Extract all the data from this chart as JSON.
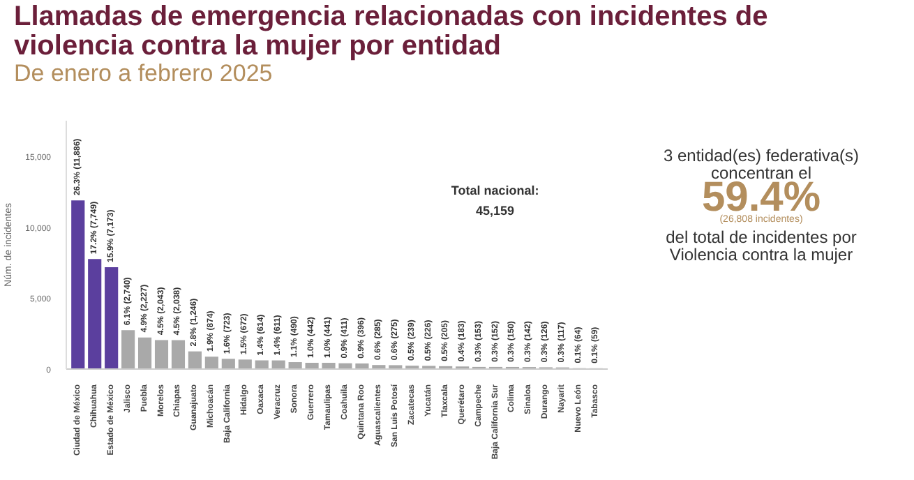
{
  "chart_data": {
    "type": "bar",
    "title": "Llamadas de emergencia relacionadas con incidentes de violencia contra la mujer por entidad",
    "subtitle": "De enero a febrero 2025",
    "ylabel": "Núm. de incidentes",
    "categories": [
      "Ciudad de México",
      "Chihuahua",
      "Estado de México",
      "Jalisco",
      "Puebla",
      "Morelos",
      "Chiapas",
      "Guanajuato",
      "Michoacán",
      "Baja California",
      "Hidalgo",
      "Oaxaca",
      "Veracruz",
      "Sonora",
      "Guerrero",
      "Tamaulipas",
      "Coahuila",
      "Quintana Roo",
      "Aguascalientes",
      "San Luis Potosí",
      "Zacatecas",
      "Yucatán",
      "Tlaxcala",
      "Querétaro",
      "Campeche",
      "Baja California Sur",
      "Colima",
      "Sinaloa",
      "Durango",
      "Nayarit",
      "Nuevo León",
      "Tabasco"
    ],
    "values": [
      11886,
      7749,
      7173,
      2740,
      2227,
      2043,
      2038,
      1246,
      874,
      723,
      672,
      614,
      611,
      490,
      442,
      441,
      411,
      396,
      285,
      275,
      239,
      226,
      205,
      183,
      153,
      152,
      150,
      142,
      126,
      117,
      64,
      59
    ],
    "value_labels": [
      "26.3% (11,886)",
      "17.2% (7,749)",
      "15.9% (7,173)",
      "6.1% (2,740)",
      "4.9% (2,227)",
      "4.5% (2,043)",
      "4.5% (2,038)",
      "2.8% (1,246)",
      "1.9% (874)",
      "1.6% (723)",
      "1.5% (672)",
      "1.4% (614)",
      "1.4% (611)",
      "1.1% (490)",
      "1.0% (442)",
      "1.0% (441)",
      "0.9% (411)",
      "0.9% (396)",
      "0.6% (285)",
      "0.6% (275)",
      "0.5% (239)",
      "0.5% (226)",
      "0.5% (205)",
      "0.4% (183)",
      "0.3% (153)",
      "0.3% (152)",
      "0.3% (150)",
      "0.3% (142)",
      "0.3% (126)",
      "0.3% (117)",
      "0.1% (64)",
      "0.1% (59)"
    ],
    "colors": [
      "#5b3f9e",
      "#5b3f9e",
      "#5b3f9e",
      "#a9a9a9",
      "#a9a9a9",
      "#a9a9a9",
      "#a9a9a9",
      "#a9a9a9",
      "#a9a9a9",
      "#a9a9a9",
      "#a9a9a9",
      "#a9a9a9",
      "#a9a9a9",
      "#a9a9a9",
      "#a9a9a9",
      "#a9a9a9",
      "#a9a9a9",
      "#a9a9a9",
      "#a9a9a9",
      "#a9a9a9",
      "#a9a9a9",
      "#a9a9a9",
      "#a9a9a9",
      "#a9a9a9",
      "#a9a9a9",
      "#a9a9a9",
      "#a9a9a9",
      "#a9a9a9",
      "#a9a9a9",
      "#a9a9a9",
      "#a9a9a9",
      "#a9a9a9"
    ],
    "ylim": [
      0,
      17500
    ],
    "yticks": [
      0,
      {
        "value": 5000,
        "label": "5,000"
      },
      {
        "value": 10000,
        "label": "10,000"
      },
      {
        "value": 15000,
        "label": "15,000"
      }
    ],
    "grid": false,
    "annotations": [
      "Total nacional:",
      "45,159",
      "3 entidad(es) federativa(s)",
      "concentran el",
      "59.4%",
      "(26,808 incidentes)",
      "del total de incidentes por",
      "Violencia contra la mujer"
    ]
  }
}
